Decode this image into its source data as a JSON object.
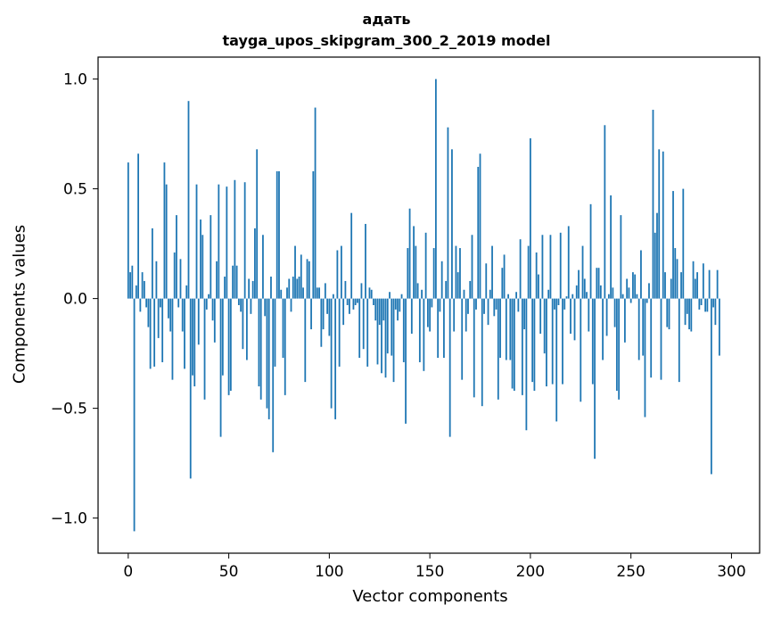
{
  "chart_data": {
    "type": "bar",
    "title_line1": "адать",
    "title_line2": "tayga_upos_skipgram_300_2_2019 model",
    "xlabel": "Vector components",
    "ylabel": "Components values",
    "xlim": [
      -15,
      314
    ],
    "ylim": [
      -1.16,
      1.1
    ],
    "xticks": [
      0,
      50,
      100,
      150,
      200,
      250,
      300
    ],
    "xtick_labels": [
      "0",
      "50",
      "100",
      "150",
      "200",
      "250",
      "300"
    ],
    "yticks": [
      -1.0,
      -0.5,
      0.0,
      0.5,
      1.0
    ],
    "ytick_labels": [
      "−1.0",
      "−0.5",
      "0.0",
      "0.5",
      "1.0"
    ],
    "bar_color": "#1f77b4",
    "grid": false,
    "legend": "none",
    "values": [
      0.62,
      0.12,
      0.15,
      -1.06,
      0.06,
      0.66,
      -0.06,
      0.12,
      0.08,
      -0.04,
      -0.13,
      -0.32,
      0.32,
      -0.31,
      0.17,
      -0.18,
      -0.04,
      -0.29,
      0.62,
      0.52,
      -0.09,
      -0.15,
      -0.37,
      0.21,
      0.38,
      -0.04,
      0.18,
      -0.15,
      -0.32,
      0.06,
      0.9,
      -0.82,
      -0.35,
      -0.4,
      0.52,
      -0.21,
      0.36,
      0.29,
      -0.46,
      -0.05,
      0.02,
      0.38,
      -0.1,
      -0.2,
      0.17,
      0.52,
      -0.63,
      -0.35,
      0.1,
      0.51,
      -0.44,
      -0.42,
      0.15,
      0.54,
      0.15,
      -0.03,
      -0.06,
      -0.23,
      0.53,
      -0.28,
      0.09,
      -0.07,
      0.08,
      0.32,
      0.68,
      -0.4,
      -0.46,
      0.29,
      -0.08,
      -0.5,
      -0.55,
      0.1,
      -0.7,
      -0.31,
      0.58,
      0.58,
      0.04,
      -0.27,
      -0.44,
      0.05,
      0.09,
      -0.06,
      0.1,
      0.24,
      0.09,
      0.1,
      0.2,
      0.05,
      -0.38,
      0.18,
      0.17,
      -0.14,
      0.58,
      0.87,
      0.05,
      0.05,
      -0.22,
      -0.14,
      0.07,
      -0.07,
      -0.17,
      -0.5,
      0.02,
      -0.55,
      0.22,
      -0.31,
      0.24,
      -0.12,
      0.08,
      -0.03,
      -0.07,
      0.39,
      -0.05,
      -0.03,
      -0.02,
      -0.27,
      0.07,
      -0.23,
      0.34,
      -0.31,
      0.05,
      0.04,
      -0.03,
      -0.1,
      -0.3,
      -0.12,
      -0.34,
      -0.1,
      -0.36,
      -0.25,
      0.03,
      -0.26,
      -0.38,
      -0.05,
      -0.1,
      -0.06,
      0.02,
      -0.29,
      -0.57,
      0.23,
      0.41,
      -0.16,
      0.33,
      0.24,
      0.07,
      -0.29,
      0.04,
      -0.33,
      0.3,
      -0.13,
      -0.15,
      -0.04,
      0.23,
      1.0,
      -0.27,
      -0.06,
      0.17,
      -0.27,
      0.08,
      0.78,
      -0.63,
      0.68,
      -0.15,
      0.24,
      0.12,
      0.23,
      -0.37,
      0.04,
      -0.15,
      -0.07,
      0.08,
      0.29,
      -0.45,
      -0.05,
      0.6,
      0.66,
      -0.49,
      -0.07,
      0.16,
      -0.12,
      0.04,
      0.24,
      -0.08,
      -0.05,
      -0.46,
      -0.27,
      0.14,
      0.2,
      -0.28,
      0.02,
      -0.28,
      -0.41,
      -0.42,
      0.03,
      -0.06,
      0.27,
      -0.44,
      -0.14,
      -0.6,
      0.24,
      0.73,
      -0.38,
      -0.42,
      0.21,
      0.11,
      -0.16,
      0.29,
      -0.25,
      -0.4,
      0.04,
      0.29,
      -0.39,
      -0.05,
      -0.56,
      -0.03,
      0.3,
      -0.39,
      -0.05,
      0.01,
      0.33,
      -0.16,
      0.02,
      -0.19,
      0.06,
      0.13,
      -0.47,
      0.24,
      0.09,
      0.03,
      -0.15,
      0.43,
      -0.39,
      -0.73,
      0.14,
      0.14,
      0.06,
      -0.28,
      0.79,
      -0.17,
      0.02,
      0.47,
      0.05,
      -0.13,
      -0.42,
      -0.46,
      0.38,
      0.02,
      -0.2,
      0.09,
      0.05,
      -0.02,
      0.12,
      0.11,
      0.02,
      -0.28,
      0.22,
      -0.26,
      -0.54,
      -0.02,
      0.07,
      -0.36,
      0.86,
      0.3,
      0.39,
      0.68,
      -0.37,
      0.67,
      0.12,
      -0.13,
      -0.14,
      0.09,
      0.49,
      0.23,
      0.18,
      -0.38,
      0.12,
      0.5,
      -0.12,
      -0.07,
      -0.14,
      -0.15,
      0.17,
      0.09,
      0.12,
      -0.05,
      -0.03,
      0.16,
      -0.06,
      -0.06,
      0.13,
      -0.8,
      -0.04,
      -0.12,
      0.13,
      -0.26
    ]
  }
}
